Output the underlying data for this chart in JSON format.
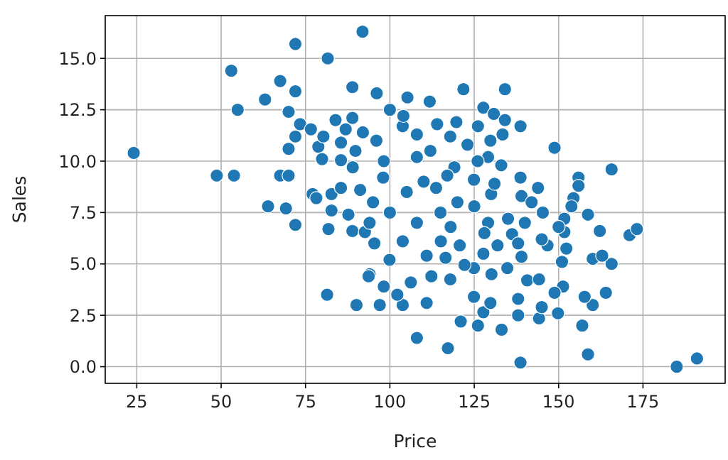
{
  "chart_data": {
    "type": "scatter",
    "xlabel": "Price",
    "ylabel": "Sales",
    "color": "#1f77b4",
    "marker": "circle",
    "grid": true,
    "xlim": [
      15.65,
      199.35
    ],
    "xticks": [
      25,
      50,
      75,
      100,
      125,
      150,
      175
    ],
    "ylim": [
      -0.81,
      17.08
    ],
    "yticks": [
      {
        "value": 0,
        "label": "0.0"
      },
      {
        "value": 2.5,
        "label": "2.5"
      },
      {
        "value": 5,
        "label": "5.0"
      },
      {
        "value": 7.5,
        "label": "7.5"
      },
      {
        "value": 10,
        "label": "10.0"
      },
      {
        "value": 12.5,
        "label": "12.5"
      },
      {
        "value": 15,
        "label": "15.0"
      }
    ],
    "x": [
      24.1,
      48.7,
      53.8,
      53,
      54.9,
      63,
      67.5,
      72,
      72,
      70,
      73.4,
      72,
      70,
      67.5,
      70,
      63.9,
      69.2,
      72,
      76.6,
      81.6,
      88.9,
      91.9,
      78.8,
      80.3,
      83.9,
      88.9,
      86.9,
      85.5,
      79.9,
      85.5,
      77.1,
      78.2,
      82.7,
      85.5,
      91.2,
      82.7,
      87.7,
      81.8,
      88.9,
      89,
      81.4,
      90.1,
      94,
      96.1,
      105.2,
      111.8,
      121.8,
      134.1,
      127.7,
      130.8,
      134.1,
      138.7,
      119.7,
      126.1,
      117.9,
      129.8,
      133.4,
      148.8,
      165.7,
      155.9,
      155.9,
      143.9,
      138.7,
      139,
      154.4,
      153.8,
      158.7,
      145.3,
      151.7,
      162.2,
      171,
      173.2,
      103.8,
      108,
      98.2,
      113.7,
      124.9,
      119.1,
      129.1,
      89.8,
      185,
      191,
      158.7,
      138.7,
      117.2,
      108,
      121,
      126.1,
      133.1,
      157,
      144.2,
      138,
      149.8,
      145,
      127.7,
      110.9,
      103.8,
      97,
      138,
      160.1,
      157.7,
      164,
      151.3,
      148.8,
      129.8,
      124.9,
      117.9,
      98.2,
      102.2,
      93.7,
      106.2,
      112.3,
      130.1,
      140.7,
      144.2,
      165.7,
      160.1,
      162.9,
      151,
      146.7,
      152.3,
      139,
      134.8,
      124.9,
      122.1,
      99.9,
      110.9,
      116.5,
      127.7,
      131.9,
      95.4,
      103.8,
      115.1,
      120.7,
      151.7,
      136.2,
      129.1,
      108,
      92.6,
      105,
      110,
      115,
      120,
      125,
      130,
      135,
      100,
      95,
      118,
      128,
      140,
      112,
      123,
      133,
      145,
      98,
      104,
      92,
      96,
      150,
      142,
      138,
      126,
      108,
      114,
      100,
      131,
      117,
      94
    ],
    "values": [
      10.4,
      9.3,
      9.3,
      14.4,
      12.5,
      13,
      13.9,
      15.7,
      13.4,
      12.4,
      11.8,
      11.2,
      10.6,
      9.3,
      9.3,
      7.8,
      7.7,
      6.9,
      11.55,
      15,
      13.6,
      16.3,
      10.7,
      11.2,
      12,
      12.1,
      11.55,
      10.9,
      10.1,
      10.05,
      8.4,
      8.2,
      8.4,
      8.7,
      8.6,
      7.6,
      7.4,
      6.7,
      6.6,
      9.7,
      3.5,
      3,
      4.5,
      13.3,
      13.1,
      12.9,
      13.5,
      13.5,
      12.6,
      12.3,
      12,
      11.7,
      11.9,
      11.7,
      11.2,
      11,
      11.3,
      10.65,
      9.6,
      9.2,
      8.8,
      8.7,
      9.2,
      8.3,
      8.2,
      7.8,
      7.4,
      7.5,
      7.2,
      6.6,
      6.4,
      6.7,
      11.7,
      10.2,
      10,
      8.7,
      9.1,
      9.7,
      10.2,
      10.5,
      0,
      0.4,
      0.6,
      0.2,
      0.9,
      1.4,
      2.2,
      2,
      1.8,
      2,
      2.35,
      2.5,
      2.6,
      2.9,
      2.65,
      3.1,
      3,
      3,
      3.3,
      3,
      3.4,
      3.6,
      3.9,
      3.6,
      3.1,
      3.4,
      4.25,
      3.9,
      3.5,
      4.4,
      4.1,
      4.4,
      4.5,
      4.2,
      4.25,
      5,
      5.25,
      5.4,
      5.1,
      5.9,
      5.75,
      5.35,
      4.8,
      4.8,
      4.95,
      5.2,
      5.4,
      5.3,
      5.5,
      5.9,
      6,
      6.1,
      6.1,
      5.9,
      6.55,
      6.45,
      7,
      7,
      6.55,
      8.5,
      9,
      7.5,
      8,
      7.8,
      8.4,
      7.2,
      7.5,
      8,
      6.8,
      6.5,
      7,
      10.5,
      10.8,
      9.8,
      6.2,
      9.2,
      12.2,
      11.4,
      11,
      6.8,
      8,
      6,
      10,
      11.3,
      11.8,
      12.5,
      8.9,
      9.3,
      7
    ]
  }
}
